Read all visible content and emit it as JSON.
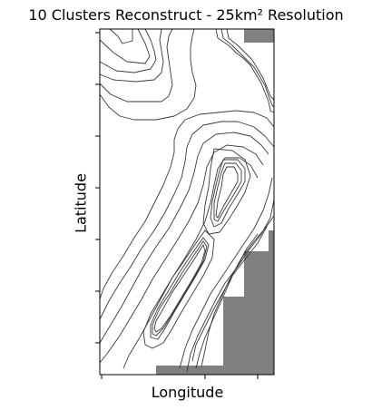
{
  "chart_data": {
    "type": "contour",
    "title": "10 Clusters Reconstruct - 25km² Resolution",
    "xlabel": "Longitude",
    "ylabel": "Latitude",
    "xtick_labels": [
      "",
      "",
      ""
    ],
    "ytick_labels": [
      "",
      "",
      "",
      "",
      "",
      "",
      ""
    ],
    "grid": false,
    "legend": "none",
    "colors": {
      "contour_line": "#3a3a3a",
      "masked_region": "#808080",
      "background": "#ffffff",
      "frame": "#000000"
    }
  }
}
